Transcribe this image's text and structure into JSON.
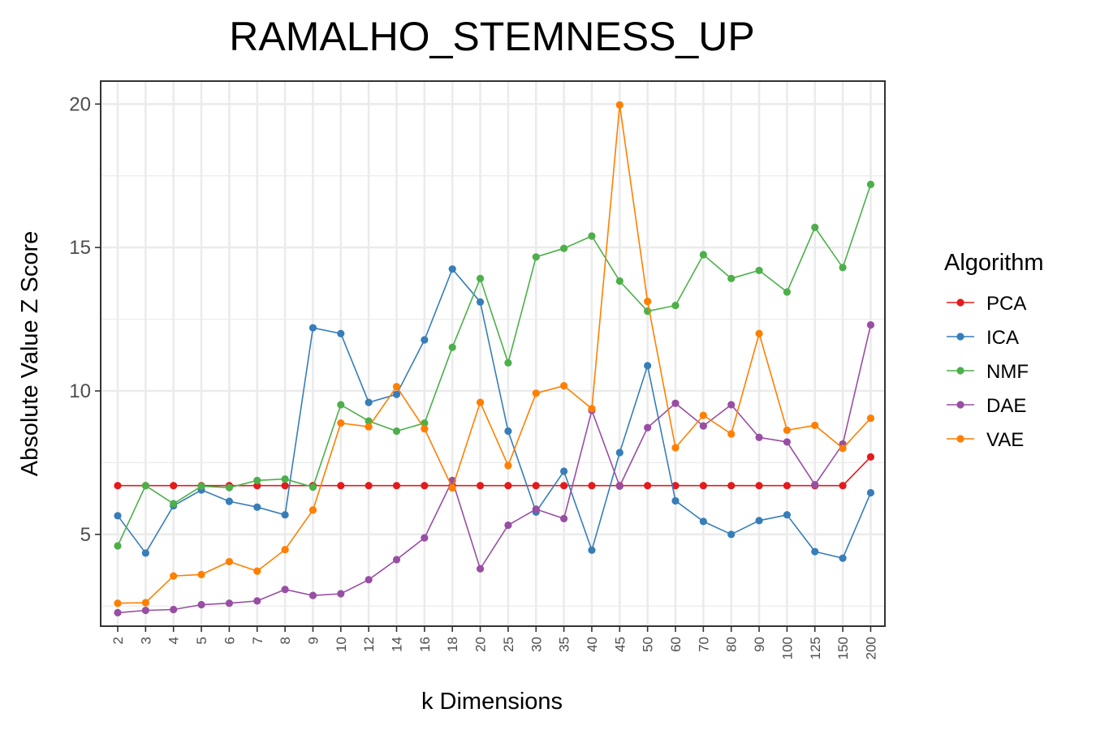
{
  "chart_data": {
    "type": "line",
    "title": "RAMALHO_STEMNESS_UP",
    "xlabel": "k Dimensions",
    "ylabel": "Absolute Value Z Score",
    "categories": [
      "2",
      "3",
      "4",
      "5",
      "6",
      "7",
      "8",
      "9",
      "10",
      "12",
      "14",
      "16",
      "18",
      "20",
      "25",
      "30",
      "35",
      "40",
      "45",
      "50",
      "60",
      "70",
      "80",
      "90",
      "100",
      "125",
      "150",
      "200"
    ],
    "ylim": [
      1.8,
      20.8
    ],
    "yticks": [
      5,
      10,
      15,
      20
    ],
    "grid": true,
    "legend": {
      "title": "Algorithm",
      "placement": "right"
    },
    "series": [
      {
        "name": "PCA",
        "color": "#E41A1C",
        "values": [
          6.7,
          6.7,
          6.7,
          6.7,
          6.7,
          6.7,
          6.7,
          6.7,
          6.7,
          6.7,
          6.7,
          6.7,
          6.7,
          6.7,
          6.7,
          6.7,
          6.7,
          6.7,
          6.7,
          6.7,
          6.7,
          6.7,
          6.7,
          6.7,
          6.7,
          6.7,
          6.7,
          7.7
        ]
      },
      {
        "name": "ICA",
        "color": "#377EB8",
        "values": [
          5.65,
          4.35,
          6.0,
          6.55,
          6.15,
          5.95,
          5.68,
          12.2,
          12.0,
          9.6,
          9.88,
          11.78,
          14.25,
          13.1,
          8.6,
          5.78,
          7.2,
          4.45,
          7.85,
          10.88,
          6.17,
          5.45,
          5.0,
          5.48,
          5.68,
          4.4,
          4.17,
          6.45
        ]
      },
      {
        "name": "NMF",
        "color": "#4DAF4A",
        "values": [
          4.6,
          6.7,
          6.07,
          6.68,
          6.63,
          6.88,
          6.93,
          6.65,
          9.52,
          8.95,
          8.6,
          8.88,
          11.52,
          13.92,
          10.98,
          14.67,
          14.97,
          15.4,
          13.83,
          12.78,
          12.98,
          14.75,
          13.92,
          14.2,
          13.45,
          15.7,
          14.3,
          17.2
        ]
      },
      {
        "name": "DAE",
        "color": "#984EA3",
        "values": [
          2.27,
          2.35,
          2.38,
          2.55,
          2.6,
          2.68,
          3.08,
          2.87,
          2.93,
          3.42,
          4.12,
          4.88,
          6.88,
          3.8,
          5.32,
          5.88,
          5.55,
          9.32,
          6.68,
          8.72,
          9.57,
          8.78,
          9.52,
          8.38,
          8.22,
          6.73,
          8.15,
          12.3
        ]
      },
      {
        "name": "VAE",
        "color": "#FF7F00",
        "values": [
          2.6,
          2.62,
          3.55,
          3.6,
          4.05,
          3.72,
          4.47,
          5.85,
          8.88,
          8.75,
          10.15,
          8.68,
          6.62,
          9.6,
          7.4,
          9.92,
          10.18,
          9.38,
          19.97,
          13.12,
          8.02,
          9.15,
          8.5,
          12.0,
          8.63,
          8.8,
          8.0,
          9.05
        ]
      }
    ]
  }
}
